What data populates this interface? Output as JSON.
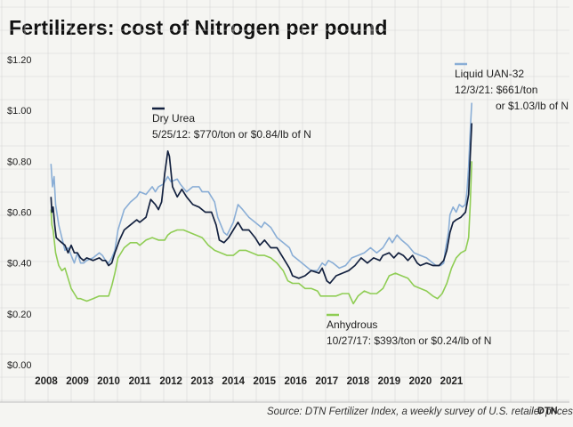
{
  "title": "Fertilizers: cost of Nitrogen per pound",
  "source": "Source: DTN Fertilizer Index, a weekly survey of U.S. retailer prices",
  "logo": "DTN",
  "colors": {
    "urea": "#13213f",
    "uan": "#8aaed6",
    "anhydrous": "#8fcd54",
    "background": "#f5f5f2",
    "grid": "#d6d6d6"
  },
  "chart_data": {
    "type": "line",
    "title": "Fertilizers: cost of Nitrogen per pound",
    "xlim": [
      2008,
      2021.7
    ],
    "ylim": [
      0,
      1.2
    ],
    "x_ticks": [
      2008,
      2009,
      2010,
      2011,
      2012,
      2013,
      2014,
      2015,
      2016,
      2017,
      2018,
      2019,
      2020,
      2021
    ],
    "x_tick_labels": [
      "2008",
      "2009",
      "2010",
      "2011",
      "2012",
      "2013",
      "2014",
      "2015",
      "2016",
      "2017",
      "2018",
      "2019",
      "2020",
      "2021"
    ],
    "y_ticks": [
      0,
      0.2,
      0.4,
      0.6,
      0.8,
      1.0,
      1.2
    ],
    "y_tick_labels": [
      "$0.00",
      "$0.20",
      "$0.40",
      "$0.60",
      "$0.80",
      "$1.00",
      "$1.20"
    ],
    "grid": true,
    "series": [
      {
        "name": "Liquid UAN-32",
        "color": "#8aaed6",
        "points": [
          [
            2008.15,
            0.79
          ],
          [
            2008.2,
            0.7
          ],
          [
            2008.25,
            0.74
          ],
          [
            2008.3,
            0.63
          ],
          [
            2008.4,
            0.55
          ],
          [
            2008.5,
            0.5
          ],
          [
            2008.6,
            0.45
          ],
          [
            2008.7,
            0.46
          ],
          [
            2008.8,
            0.43
          ],
          [
            2008.9,
            0.4
          ],
          [
            2009.0,
            0.44
          ],
          [
            2009.1,
            0.4
          ],
          [
            2009.2,
            0.4
          ],
          [
            2009.3,
            0.41
          ],
          [
            2009.5,
            0.42
          ],
          [
            2009.7,
            0.44
          ],
          [
            2009.8,
            0.43
          ],
          [
            2009.9,
            0.41
          ],
          [
            2010.0,
            0.4
          ],
          [
            2010.1,
            0.42
          ],
          [
            2010.2,
            0.45
          ],
          [
            2010.3,
            0.53
          ],
          [
            2010.5,
            0.61
          ],
          [
            2010.7,
            0.64
          ],
          [
            2010.9,
            0.66
          ],
          [
            2011.0,
            0.68
          ],
          [
            2011.2,
            0.67
          ],
          [
            2011.4,
            0.7
          ],
          [
            2011.5,
            0.68
          ],
          [
            2011.6,
            0.7
          ],
          [
            2011.75,
            0.71
          ],
          [
            2011.9,
            0.74
          ],
          [
            2012.0,
            0.72
          ],
          [
            2012.2,
            0.73
          ],
          [
            2012.3,
            0.71
          ],
          [
            2012.5,
            0.68
          ],
          [
            2012.7,
            0.7
          ],
          [
            2012.9,
            0.7
          ],
          [
            2013.0,
            0.68
          ],
          [
            2013.2,
            0.68
          ],
          [
            2013.4,
            0.64
          ],
          [
            2013.5,
            0.58
          ],
          [
            2013.6,
            0.55
          ],
          [
            2013.7,
            0.52
          ],
          [
            2013.8,
            0.51
          ],
          [
            2014.0,
            0.56
          ],
          [
            2014.15,
            0.63
          ],
          [
            2014.3,
            0.61
          ],
          [
            2014.5,
            0.58
          ],
          [
            2014.7,
            0.56
          ],
          [
            2014.9,
            0.54
          ],
          [
            2015.0,
            0.56
          ],
          [
            2015.2,
            0.54
          ],
          [
            2015.4,
            0.5
          ],
          [
            2015.6,
            0.48
          ],
          [
            2015.8,
            0.46
          ],
          [
            2015.9,
            0.43
          ],
          [
            2016.1,
            0.41
          ],
          [
            2016.3,
            0.39
          ],
          [
            2016.5,
            0.37
          ],
          [
            2016.7,
            0.37
          ],
          [
            2016.85,
            0.4
          ],
          [
            2016.95,
            0.39
          ],
          [
            2017.05,
            0.41
          ],
          [
            2017.2,
            0.4
          ],
          [
            2017.4,
            0.38
          ],
          [
            2017.6,
            0.39
          ],
          [
            2017.8,
            0.42
          ],
          [
            2018.0,
            0.43
          ],
          [
            2018.2,
            0.44
          ],
          [
            2018.4,
            0.46
          ],
          [
            2018.6,
            0.44
          ],
          [
            2018.8,
            0.46
          ],
          [
            2019.0,
            0.5
          ],
          [
            2019.1,
            0.48
          ],
          [
            2019.25,
            0.51
          ],
          [
            2019.4,
            0.49
          ],
          [
            2019.6,
            0.47
          ],
          [
            2019.8,
            0.44
          ],
          [
            2020.0,
            0.43
          ],
          [
            2020.2,
            0.42
          ],
          [
            2020.4,
            0.4
          ],
          [
            2020.5,
            0.39
          ],
          [
            2020.65,
            0.39
          ],
          [
            2020.75,
            0.4
          ],
          [
            2020.8,
            0.45
          ],
          [
            2020.9,
            0.52
          ],
          [
            2020.95,
            0.59
          ],
          [
            2021.05,
            0.62
          ],
          [
            2021.15,
            0.6
          ],
          [
            2021.25,
            0.63
          ],
          [
            2021.35,
            0.62
          ],
          [
            2021.45,
            0.63
          ],
          [
            2021.5,
            0.69
          ],
          [
            2021.55,
            0.78
          ],
          [
            2021.6,
            0.92
          ],
          [
            2021.65,
            1.03
          ]
        ]
      },
      {
        "name": "Dry Urea",
        "color": "#13213f",
        "points": [
          [
            2008.15,
            0.66
          ],
          [
            2008.18,
            0.6
          ],
          [
            2008.22,
            0.62
          ],
          [
            2008.27,
            0.55
          ],
          [
            2008.32,
            0.5
          ],
          [
            2008.4,
            0.49
          ],
          [
            2008.5,
            0.48
          ],
          [
            2008.6,
            0.47
          ],
          [
            2008.7,
            0.44
          ],
          [
            2008.8,
            0.47
          ],
          [
            2008.9,
            0.44
          ],
          [
            2009.0,
            0.44
          ],
          [
            2009.1,
            0.42
          ],
          [
            2009.2,
            0.41
          ],
          [
            2009.3,
            0.42
          ],
          [
            2009.5,
            0.41
          ],
          [
            2009.7,
            0.42
          ],
          [
            2009.8,
            0.41
          ],
          [
            2009.9,
            0.41
          ],
          [
            2010.0,
            0.39
          ],
          [
            2010.1,
            0.4
          ],
          [
            2010.2,
            0.44
          ],
          [
            2010.35,
            0.49
          ],
          [
            2010.5,
            0.53
          ],
          [
            2010.7,
            0.55
          ],
          [
            2010.9,
            0.57
          ],
          [
            2011.0,
            0.56
          ],
          [
            2011.2,
            0.58
          ],
          [
            2011.35,
            0.65
          ],
          [
            2011.5,
            0.63
          ],
          [
            2011.6,
            0.61
          ],
          [
            2011.7,
            0.64
          ],
          [
            2011.8,
            0.75
          ],
          [
            2011.9,
            0.84
          ],
          [
            2011.95,
            0.82
          ],
          [
            2012.05,
            0.7
          ],
          [
            2012.2,
            0.66
          ],
          [
            2012.35,
            0.69
          ],
          [
            2012.5,
            0.66
          ],
          [
            2012.7,
            0.63
          ],
          [
            2012.9,
            0.62
          ],
          [
            2013.1,
            0.6
          ],
          [
            2013.3,
            0.6
          ],
          [
            2013.45,
            0.55
          ],
          [
            2013.55,
            0.49
          ],
          [
            2013.7,
            0.48
          ],
          [
            2013.85,
            0.5
          ],
          [
            2014.0,
            0.53
          ],
          [
            2014.15,
            0.56
          ],
          [
            2014.3,
            0.53
          ],
          [
            2014.5,
            0.53
          ],
          [
            2014.7,
            0.5
          ],
          [
            2014.85,
            0.47
          ],
          [
            2015.0,
            0.49
          ],
          [
            2015.2,
            0.46
          ],
          [
            2015.4,
            0.46
          ],
          [
            2015.6,
            0.42
          ],
          [
            2015.8,
            0.38
          ],
          [
            2015.9,
            0.35
          ],
          [
            2016.1,
            0.34
          ],
          [
            2016.3,
            0.35
          ],
          [
            2016.5,
            0.37
          ],
          [
            2016.75,
            0.36
          ],
          [
            2016.85,
            0.38
          ],
          [
            2017.0,
            0.33
          ],
          [
            2017.1,
            0.32
          ],
          [
            2017.3,
            0.35
          ],
          [
            2017.5,
            0.36
          ],
          [
            2017.7,
            0.37
          ],
          [
            2017.9,
            0.39
          ],
          [
            2018.1,
            0.42
          ],
          [
            2018.3,
            0.4
          ],
          [
            2018.5,
            0.42
          ],
          [
            2018.7,
            0.41
          ],
          [
            2018.8,
            0.43
          ],
          [
            2019.0,
            0.44
          ],
          [
            2019.15,
            0.42
          ],
          [
            2019.3,
            0.44
          ],
          [
            2019.45,
            0.43
          ],
          [
            2019.6,
            0.41
          ],
          [
            2019.75,
            0.43
          ],
          [
            2019.9,
            0.4
          ],
          [
            2020.0,
            0.39
          ],
          [
            2020.2,
            0.4
          ],
          [
            2020.4,
            0.39
          ],
          [
            2020.6,
            0.39
          ],
          [
            2020.75,
            0.41
          ],
          [
            2020.85,
            0.45
          ],
          [
            2020.95,
            0.52
          ],
          [
            2021.05,
            0.56
          ],
          [
            2021.15,
            0.57
          ],
          [
            2021.3,
            0.58
          ],
          [
            2021.45,
            0.6
          ],
          [
            2021.55,
            0.67
          ],
          [
            2021.6,
            0.82
          ],
          [
            2021.65,
            0.95
          ]
        ]
      },
      {
        "name": "Anhydrous",
        "color": "#8fcd54",
        "points": [
          [
            2008.15,
            0.61
          ],
          [
            2008.18,
            0.55
          ],
          [
            2008.22,
            0.53
          ],
          [
            2008.3,
            0.44
          ],
          [
            2008.4,
            0.39
          ],
          [
            2008.5,
            0.37
          ],
          [
            2008.6,
            0.38
          ],
          [
            2008.7,
            0.34
          ],
          [
            2008.8,
            0.3
          ],
          [
            2008.9,
            0.28
          ],
          [
            2009.0,
            0.26
          ],
          [
            2009.1,
            0.26
          ],
          [
            2009.3,
            0.25
          ],
          [
            2009.5,
            0.26
          ],
          [
            2009.7,
            0.27
          ],
          [
            2009.85,
            0.27
          ],
          [
            2010.0,
            0.27
          ],
          [
            2010.1,
            0.31
          ],
          [
            2010.2,
            0.36
          ],
          [
            2010.3,
            0.42
          ],
          [
            2010.5,
            0.46
          ],
          [
            2010.7,
            0.48
          ],
          [
            2010.9,
            0.48
          ],
          [
            2011.0,
            0.47
          ],
          [
            2011.2,
            0.49
          ],
          [
            2011.4,
            0.5
          ],
          [
            2011.6,
            0.49
          ],
          [
            2011.8,
            0.49
          ],
          [
            2011.9,
            0.51
          ],
          [
            2012.0,
            0.52
          ],
          [
            2012.2,
            0.53
          ],
          [
            2012.4,
            0.53
          ],
          [
            2012.6,
            0.52
          ],
          [
            2012.8,
            0.51
          ],
          [
            2013.0,
            0.5
          ],
          [
            2013.2,
            0.47
          ],
          [
            2013.4,
            0.45
          ],
          [
            2013.6,
            0.44
          ],
          [
            2013.8,
            0.43
          ],
          [
            2014.0,
            0.43
          ],
          [
            2014.2,
            0.45
          ],
          [
            2014.4,
            0.45
          ],
          [
            2014.6,
            0.44
          ],
          [
            2014.8,
            0.43
          ],
          [
            2015.0,
            0.43
          ],
          [
            2015.2,
            0.42
          ],
          [
            2015.4,
            0.4
          ],
          [
            2015.6,
            0.37
          ],
          [
            2015.75,
            0.33
          ],
          [
            2015.9,
            0.32
          ],
          [
            2016.1,
            0.32
          ],
          [
            2016.3,
            0.3
          ],
          [
            2016.5,
            0.3
          ],
          [
            2016.7,
            0.29
          ],
          [
            2016.8,
            0.27
          ],
          [
            2016.9,
            0.27
          ],
          [
            2017.1,
            0.27
          ],
          [
            2017.3,
            0.27
          ],
          [
            2017.5,
            0.28
          ],
          [
            2017.7,
            0.28
          ],
          [
            2017.85,
            0.24
          ],
          [
            2018.0,
            0.27
          ],
          [
            2018.2,
            0.29
          ],
          [
            2018.4,
            0.28
          ],
          [
            2018.6,
            0.28
          ],
          [
            2018.8,
            0.3
          ],
          [
            2019.0,
            0.35
          ],
          [
            2019.2,
            0.36
          ],
          [
            2019.4,
            0.35
          ],
          [
            2019.6,
            0.34
          ],
          [
            2019.8,
            0.31
          ],
          [
            2020.0,
            0.3
          ],
          [
            2020.2,
            0.29
          ],
          [
            2020.4,
            0.27
          ],
          [
            2020.55,
            0.26
          ],
          [
            2020.7,
            0.28
          ],
          [
            2020.85,
            0.32
          ],
          [
            2021.0,
            0.38
          ],
          [
            2021.15,
            0.42
          ],
          [
            2021.3,
            0.44
          ],
          [
            2021.45,
            0.45
          ],
          [
            2021.55,
            0.5
          ],
          [
            2021.6,
            0.63
          ],
          [
            2021.65,
            0.8
          ]
        ]
      }
    ],
    "annotations": [
      {
        "series": "Dry Urea",
        "label": "Dry Urea",
        "detail": "5/25/12: $770/ton or $0.84/lb of N"
      },
      {
        "series": "Liquid UAN-32",
        "label": "Liquid UAN-32",
        "detail": "12/3/21: $661/ton",
        "detail2": "or $1.03/lb of N"
      },
      {
        "series": "Anhydrous",
        "label": "Anhydrous",
        "detail": "10/27/17: $393/ton or $0.24/lb of N"
      }
    ]
  }
}
